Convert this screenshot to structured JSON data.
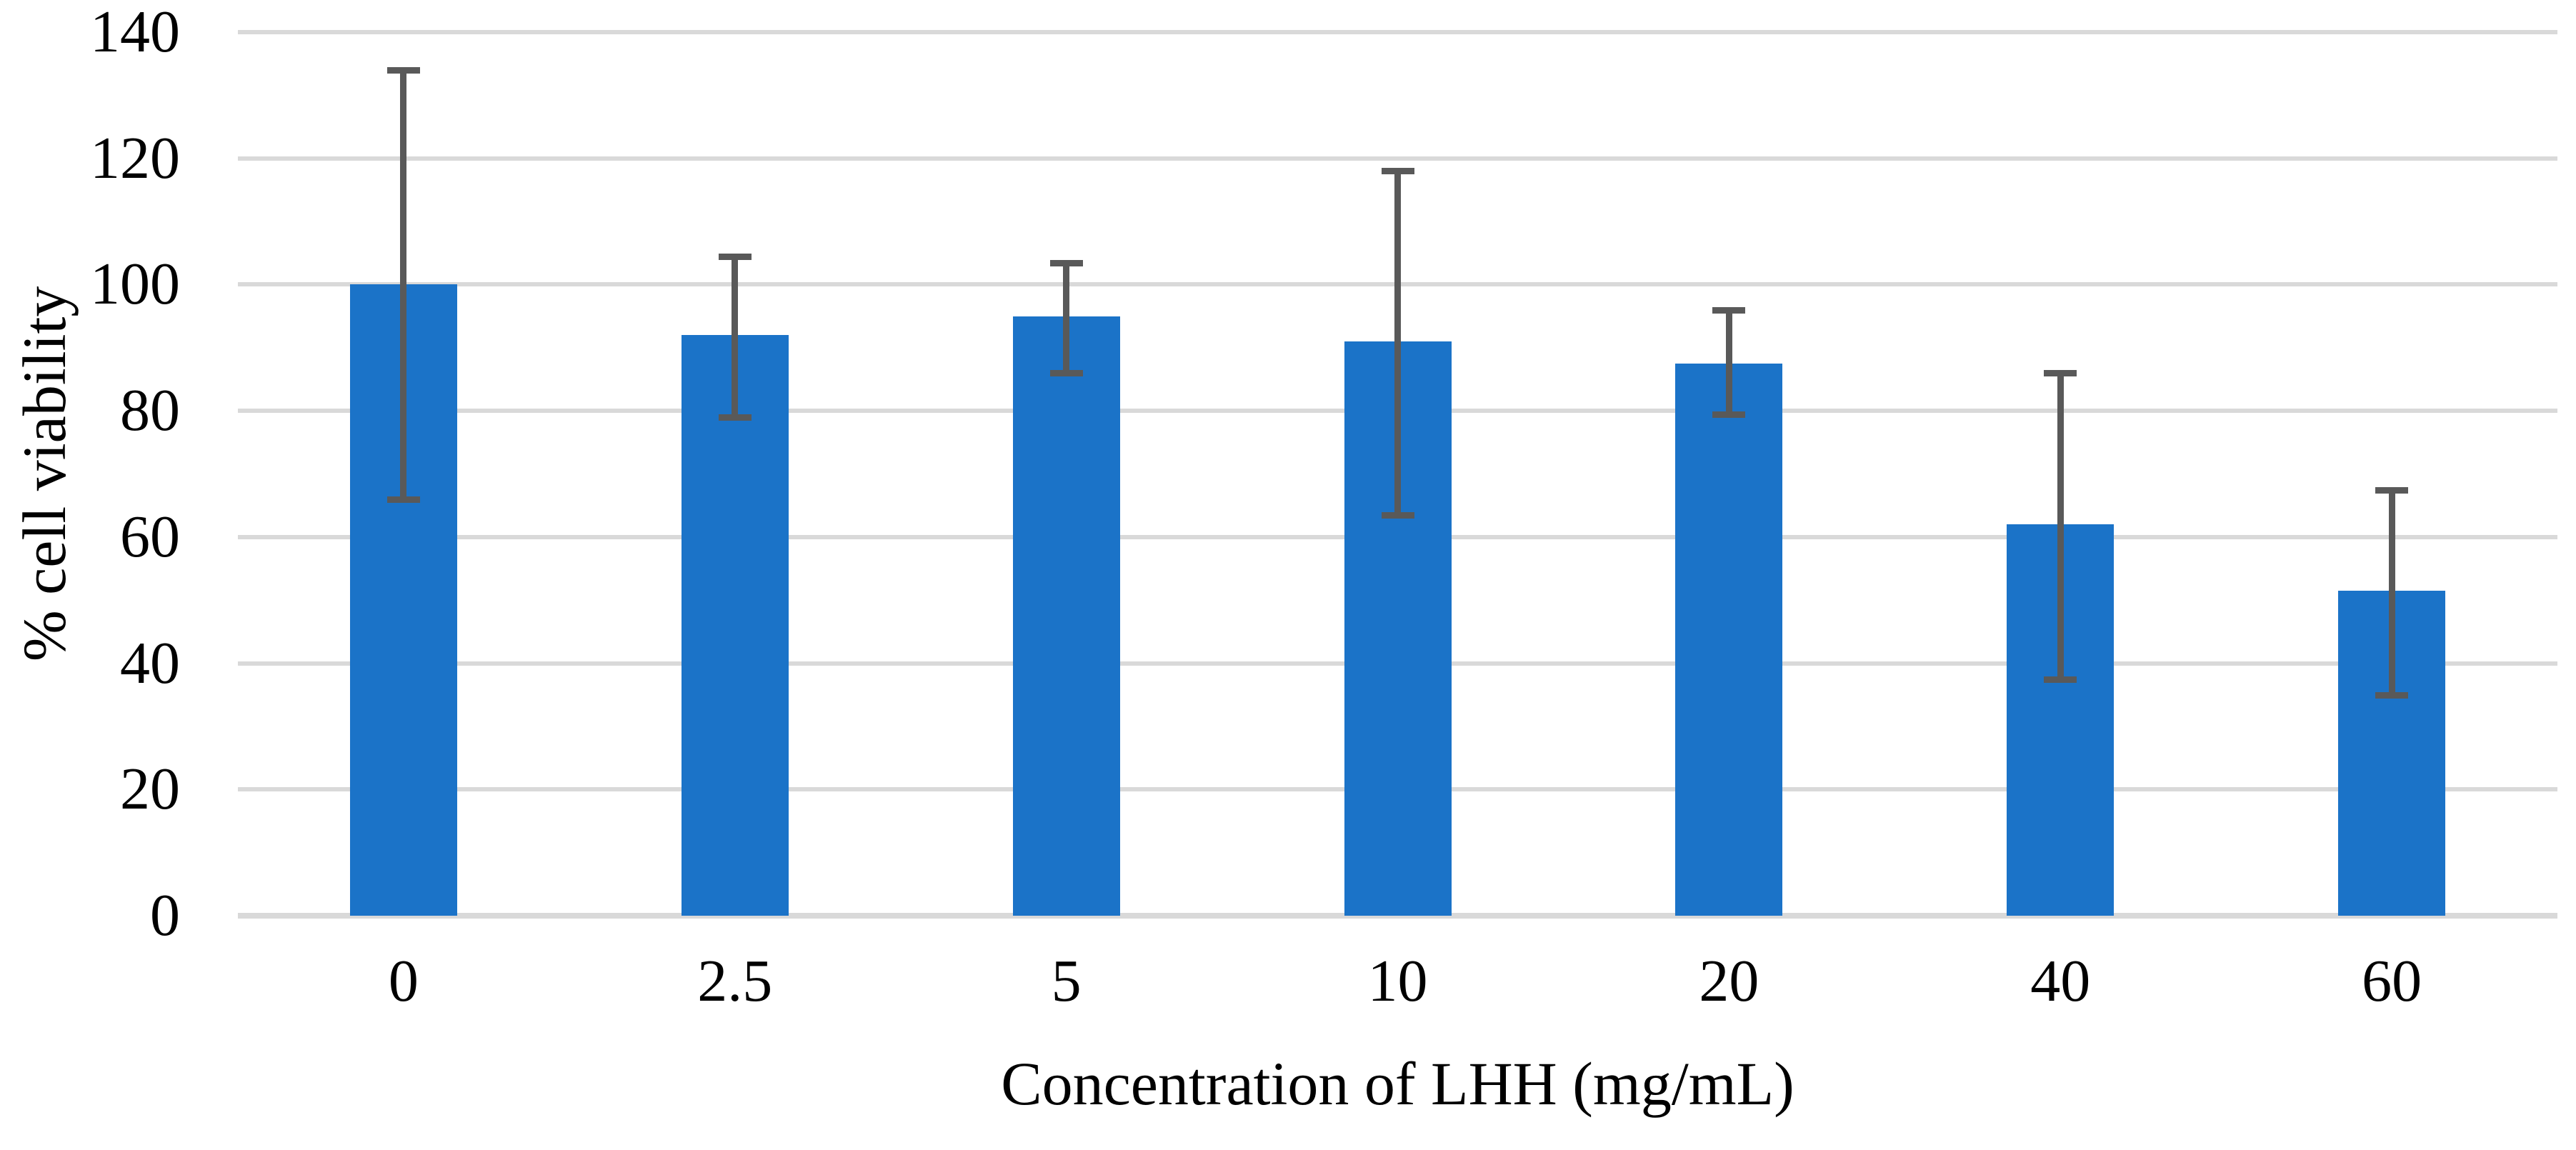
{
  "chart_data": {
    "type": "bar",
    "title": "",
    "categories": [
      "0",
      "2.5",
      "5",
      "10",
      "20",
      "40",
      "60"
    ],
    "values": [
      100,
      92,
      95,
      91,
      87.5,
      62,
      51.5
    ],
    "error_low": [
      66,
      79,
      86,
      63.5,
      79.5,
      37.5,
      35
    ],
    "error_high": [
      134,
      104.5,
      103.5,
      118,
      96,
      86,
      67.5
    ],
    "xlabel": "Concentration of LHH (mg/mL)",
    "ylabel": "% cell viability",
    "ylim": [
      0,
      140
    ],
    "yticks": [
      0,
      20,
      40,
      60,
      80,
      100,
      120,
      140
    ],
    "grid": true,
    "legend": "none",
    "bar_color": "#1B73C8",
    "error_bar_color": "#595959",
    "gridline_color": "#D9D9D9",
    "text_color": "#000000"
  }
}
